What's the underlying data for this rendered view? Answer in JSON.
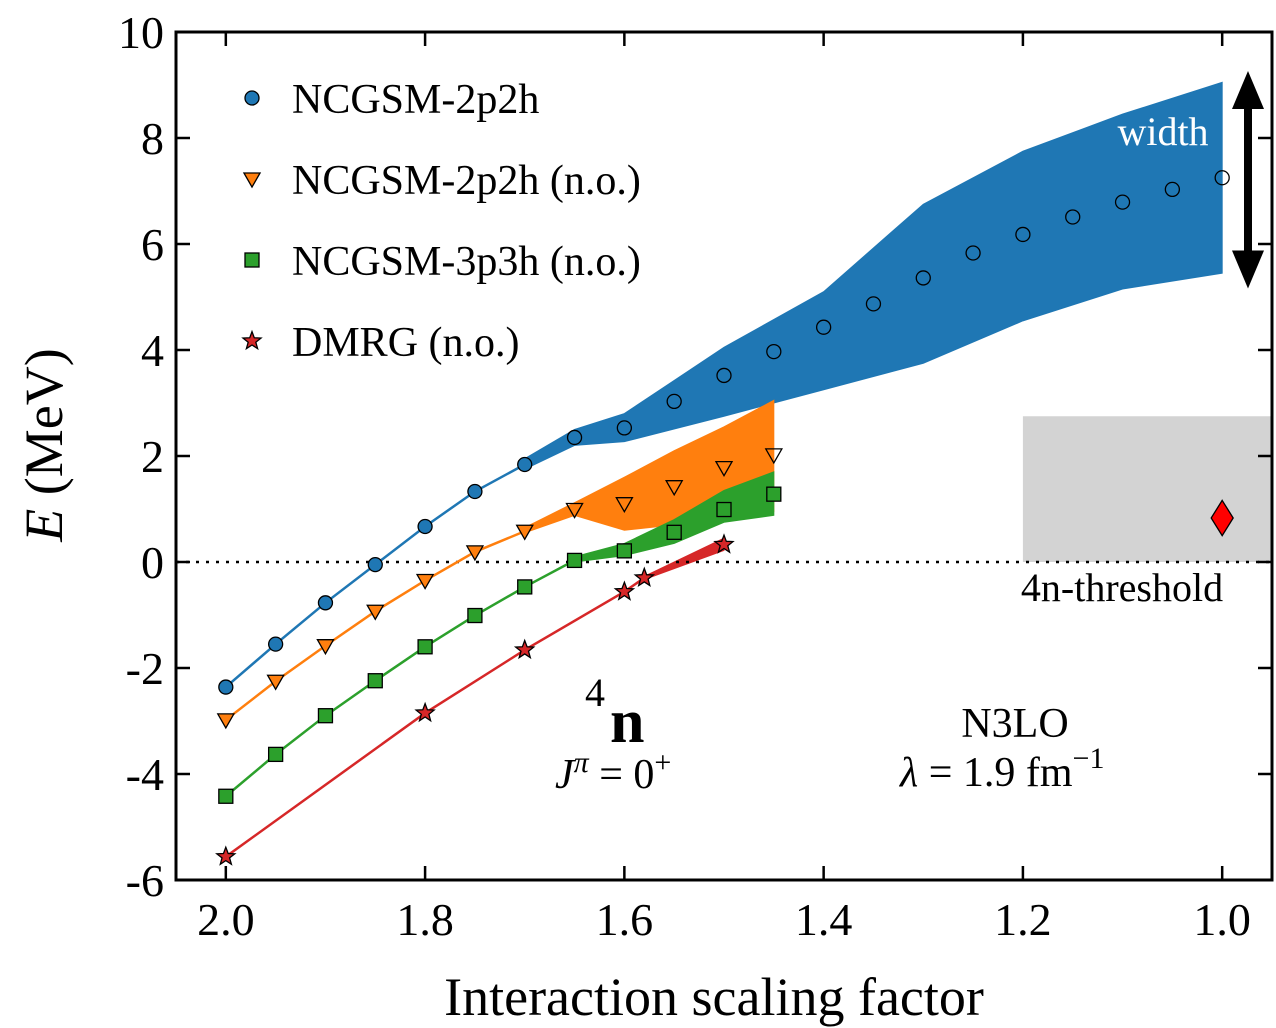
{
  "chart_data": {
    "type": "line",
    "xlabel": "Interaction scaling factor",
    "ylabel": "E (MeV)",
    "ylabel_italic": "E",
    "ylabel_unit": " (MeV)",
    "xlim": [
      2.05,
      0.95
    ],
    "ylim": [
      -6,
      10
    ],
    "x_reversed": true,
    "x_ticks": [
      {
        "value": 2.0,
        "label": "2.0"
      },
      {
        "value": 1.8,
        "label": "1.8"
      },
      {
        "value": 1.6,
        "label": "1.6"
      },
      {
        "value": 1.4,
        "label": "1.4"
      },
      {
        "value": 1.2,
        "label": "1.2"
      },
      {
        "value": 1.0,
        "label": "1.0"
      }
    ],
    "y_ticks": [
      {
        "value": 10,
        "label": "10"
      },
      {
        "value": 8,
        "label": "8"
      },
      {
        "value": 6,
        "label": "6"
      },
      {
        "value": 4,
        "label": "4"
      },
      {
        "value": 2,
        "label": "2"
      },
      {
        "value": 0,
        "label": "0"
      },
      {
        "value": -2,
        "label": "-2"
      },
      {
        "value": -4,
        "label": "-4"
      },
      {
        "value": -6,
        "label": "-6"
      }
    ],
    "grid": false,
    "legend_position": "top-left",
    "threshold": {
      "y": 0,
      "label": "4n-threshold"
    },
    "experiment": {
      "x_range": [
        1.2,
        0.95
      ],
      "y_range": [
        -0.0,
        2.75
      ],
      "point": {
        "x": 1.0,
        "y": 0.83
      },
      "color": "#d3d3d3",
      "point_color": "#ff0000"
    },
    "width_annotation": {
      "label": "width",
      "x": 0.975,
      "y_range": [
        5.5,
        9.0
      ]
    },
    "nucleus": {
      "mass_number": "4",
      "symbol": "n",
      "jpi_J": "J",
      "jpi_pi": "π",
      "jpi_rest": " = 0",
      "jpi_parity": "+"
    },
    "interaction": {
      "name": "N3LO",
      "lambda_symbol": "λ",
      "lambda_text": " = 1.9 fm",
      "lambda_exp": "−1"
    },
    "series": [
      {
        "name": "NCGSM-2p2h",
        "color": "#1f77b4",
        "marker": "circle",
        "x": [
          2.0,
          1.95,
          1.9,
          1.85,
          1.8,
          1.75,
          1.7,
          1.65,
          1.6,
          1.55,
          1.5,
          1.45,
          1.4,
          1.35,
          1.3,
          1.25,
          1.2,
          1.15,
          1.1,
          1.05,
          1.0
        ],
        "y": [
          -2.36,
          -1.55,
          -0.77,
          -0.05,
          0.67,
          1.33,
          1.84,
          2.35,
          2.53,
          3.03,
          3.52,
          3.97,
          4.43,
          4.87,
          5.36,
          5.83,
          6.18,
          6.51,
          6.79,
          7.03,
          7.25
        ],
        "band": {
          "x": [
            1.7,
            1.65,
            1.6,
            1.5,
            1.4,
            1.3,
            1.2,
            1.1,
            1.0
          ],
          "upper": [
            1.95,
            2.5,
            2.8,
            4.05,
            5.1,
            6.75,
            7.75,
            8.45,
            9.05
          ],
          "lower": [
            1.75,
            2.2,
            2.27,
            2.75,
            3.25,
            3.75,
            4.55,
            5.15,
            5.45
          ]
        }
      },
      {
        "name": "NCGSM-2p2h (n.o.)",
        "color": "#ff7f0e",
        "marker": "triangle-down",
        "x": [
          2.0,
          1.95,
          1.9,
          1.85,
          1.8,
          1.75,
          1.7,
          1.65,
          1.6,
          1.55,
          1.5,
          1.45
        ],
        "y": [
          -2.98,
          -2.25,
          -1.58,
          -0.93,
          -0.35,
          0.19,
          0.58,
          0.99,
          1.1,
          1.42,
          1.78,
          2.02
        ],
        "band": {
          "x": [
            1.7,
            1.65,
            1.6,
            1.55,
            1.5,
            1.45
          ],
          "upper": [
            0.65,
            1.12,
            1.6,
            2.1,
            2.55,
            3.05
          ],
          "lower": [
            0.55,
            0.88,
            0.6,
            0.7,
            0.82,
            0.95
          ]
        }
      },
      {
        "name": "NCGSM-3p3h (n.o.)",
        "color": "#2ca02c",
        "marker": "square",
        "x": [
          2.0,
          1.95,
          1.9,
          1.85,
          1.8,
          1.75,
          1.7,
          1.65,
          1.6,
          1.55,
          1.5,
          1.45
        ],
        "y": [
          -4.42,
          -3.63,
          -2.9,
          -2.24,
          -1.6,
          -1.01,
          -0.47,
          0.03,
          0.21,
          0.56,
          0.99,
          1.28
        ],
        "band": {
          "x": [
            1.65,
            1.6,
            1.55,
            1.5,
            1.45
          ],
          "upper": [
            0.1,
            0.35,
            0.8,
            1.35,
            1.7
          ],
          "lower": [
            0.0,
            0.12,
            0.35,
            0.75,
            0.88
          ]
        }
      },
      {
        "name": "DMRG (n.o.)",
        "color": "#d62728",
        "marker": "star",
        "x": [
          2.0,
          1.8,
          1.7,
          1.6,
          1.58,
          1.5
        ],
        "y": [
          -5.56,
          -2.85,
          -1.66,
          -0.56,
          -0.3,
          0.33
        ],
        "band": {
          "x": [
            1.58,
            1.5
          ],
          "upper": [
            -0.27,
            0.45
          ],
          "lower": [
            -0.33,
            0.22
          ]
        }
      }
    ]
  }
}
